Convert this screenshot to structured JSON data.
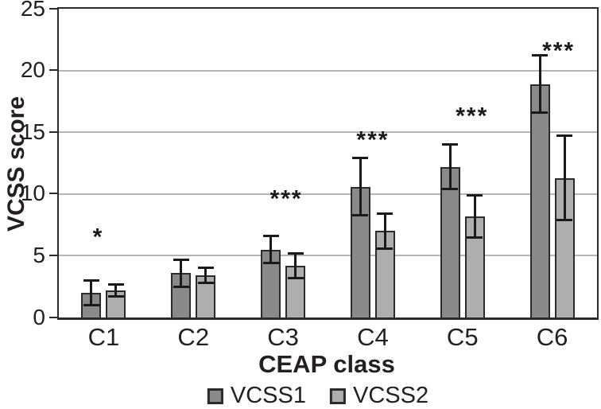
{
  "chart_data": {
    "type": "bar",
    "title": "",
    "xlabel": "CEAP class",
    "ylabel": "VCSS score",
    "ylim": [
      0,
      25
    ],
    "yticks": [
      0,
      5,
      10,
      15,
      20,
      25
    ],
    "grid": true,
    "legend_position": "bottom",
    "categories": [
      "C1",
      "C2",
      "C3",
      "C4",
      "C5",
      "C6"
    ],
    "series": [
      {
        "name": "VCSS1",
        "color": "#8a8a8a",
        "values": [
          2.0,
          3.6,
          5.5,
          10.6,
          12.2,
          18.9
        ],
        "errors": [
          1.1,
          1.2,
          1.2,
          2.4,
          1.9,
          2.4
        ]
      },
      {
        "name": "VCSS2",
        "color": "#aeaeae",
        "values": [
          2.2,
          3.4,
          4.2,
          7.0,
          8.2,
          11.3
        ],
        "errors": [
          0.6,
          0.7,
          1.1,
          1.5,
          1.8,
          3.5
        ]
      }
    ],
    "significance_markers": [
      {
        "category": "C1",
        "text": "*",
        "y": 6.3,
        "x_offset": -7
      },
      {
        "category": "C3",
        "text": "***",
        "y": 9.4,
        "x_offset": 4
      },
      {
        "category": "C4",
        "text": "***",
        "y": 14.2,
        "x_offset": 0
      },
      {
        "category": "C5",
        "text": "***",
        "y": 16.1,
        "x_offset": 12
      },
      {
        "category": "C6",
        "text": "***",
        "y": 21.4,
        "x_offset": 8
      }
    ]
  },
  "colors": {
    "axis": "#2b2b2b",
    "grid": "#b5b5b5",
    "error_bar": "#1a1a1a",
    "bar_border": "#2b2b2b",
    "text": "#242021",
    "background": "#ffffff"
  }
}
